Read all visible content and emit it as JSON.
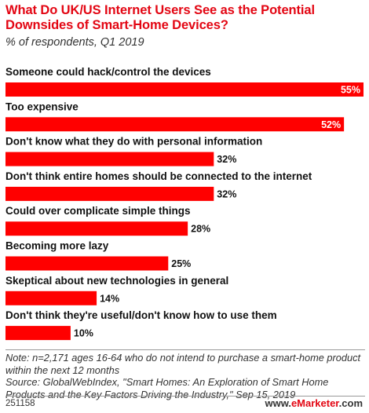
{
  "header": {
    "title": "What Do UK/US Internet Users See as the Potential Downsides of Smart-Home Devices?",
    "subtitle": "% of respondents, Q1 2019"
  },
  "chart_data": {
    "type": "bar",
    "orientation": "horizontal",
    "categories": [
      "Someone could hack/control the devices",
      "Too expensive",
      "Don't know what they do with personal information",
      "Don't think entire homes should be connected to the internet",
      "Could over complicate simple things",
      "Becoming more lazy",
      "Skeptical about new technologies in general",
      "Don't think they're useful/don't know how to use them"
    ],
    "values": [
      55,
      52,
      32,
      32,
      28,
      25,
      14,
      10
    ],
    "value_labels": [
      "55%",
      "52%",
      "32%",
      "32%",
      "28%",
      "25%",
      "14%",
      "10%"
    ],
    "xlim": [
      0,
      55
    ],
    "bar_color": "#ff0000",
    "grid": false,
    "legend": "none"
  },
  "footer": {
    "note": "Note: n=2,171 ages 16-64 who do not intend to purchase a smart-home product within the next 12 months",
    "source": "Source: GlobalWebIndex, \"Smart Homes: An Exploration of Smart Home Products and the Key Factors Driving the Industry,\" Sep 15, 2019",
    "id": "251158",
    "brand_prefix": "www.",
    "brand_name": "eMarketer",
    "brand_suffix": ".com"
  },
  "colors": {
    "title": "#e30613",
    "bar": "#ff0000",
    "text": "#111111"
  }
}
